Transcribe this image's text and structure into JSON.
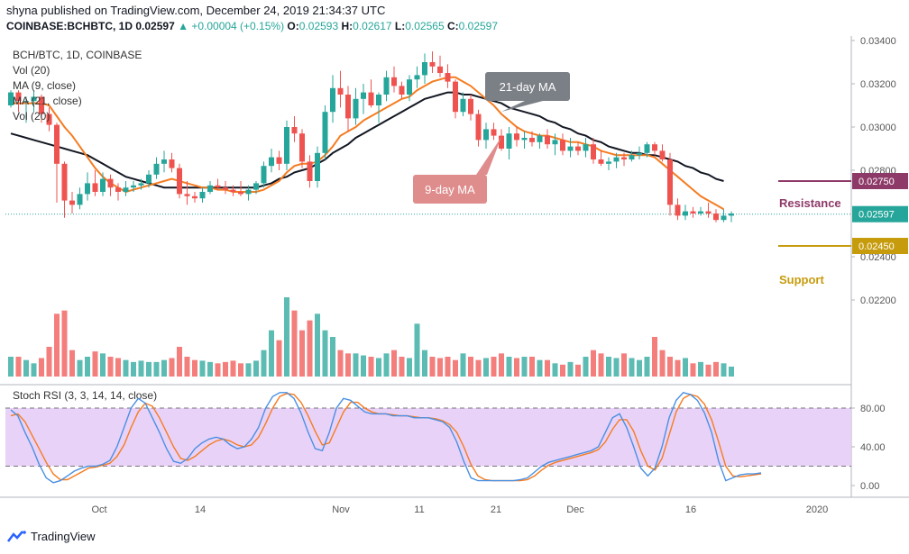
{
  "header": {
    "published": "shyna published on TradingView.com, December 24, 2019 21:34:37 UTC",
    "symbol": "COINBASE:BCHBTC, 1D",
    "last": "0.02597",
    "change": "+0.00004 (+0.15%)",
    "ohlc": {
      "o_label": "O:",
      "o": "0.02593",
      "h_label": "H:",
      "h": "0.02617",
      "l_label": "L:",
      "l": "0.02565",
      "c_label": "C:",
      "c": "0.02597"
    }
  },
  "legend": {
    "title": "BCH/BTC, 1D, COINBASE",
    "lines": [
      "Vol (20)",
      "MA (9, close)",
      "MA (21, close)",
      "Vol (20)"
    ]
  },
  "annotations": {
    "ma21": "21-day MA",
    "ma9": "9-day MA",
    "resistance": "Resistance",
    "support": "Support"
  },
  "footer": {
    "brand": "TradingView"
  },
  "colors": {
    "up": "#26a69a",
    "down": "#ef5350",
    "ma21": "#131722",
    "ma9": "#f57c21",
    "resistance": "#8e3a69",
    "support": "#c69b0c",
    "rsi_k": "#4a90e2",
    "rsi_d": "#f57c21",
    "rsi_band": "#e7cdf7"
  },
  "chart_data": [
    {
      "type": "candlestick",
      "title": "BCH/BTC, 1D, COINBASE",
      "x_ticks": [
        "Oct",
        "14",
        "Nov",
        "11",
        "21",
        "Dec",
        "16",
        "2020"
      ],
      "y_ticks": [
        "0.03400",
        "0.03200",
        "0.03000",
        "0.02800",
        "0.02400",
        "0.02200"
      ],
      "ylim": [
        0.0208,
        0.0342
      ],
      "last_price": 0.02597,
      "resistance": 0.0275,
      "support": 0.0245,
      "price_labels": [
        "0.02750",
        "0.02597",
        "0.02450"
      ],
      "candles": [
        [
          0.031,
          0.0317,
          0.0309,
          0.0316
        ],
        [
          0.0316,
          0.0317,
          0.0307,
          0.0312
        ],
        [
          0.0312,
          0.0314,
          0.0302,
          0.0312
        ],
        [
          0.0312,
          0.0317,
          0.0307,
          0.0314
        ],
        [
          0.0314,
          0.0315,
          0.0302,
          0.0306
        ],
        [
          0.0306,
          0.0309,
          0.0298,
          0.0301
        ],
        [
          0.0301,
          0.0302,
          0.0265,
          0.0283
        ],
        [
          0.0283,
          0.0284,
          0.0258,
          0.0266
        ],
        [
          0.0266,
          0.027,
          0.026,
          0.0264
        ],
        [
          0.0264,
          0.0272,
          0.0262,
          0.0269
        ],
        [
          0.0269,
          0.0279,
          0.0266,
          0.0274
        ],
        [
          0.0274,
          0.028,
          0.0268,
          0.027
        ],
        [
          0.027,
          0.0279,
          0.0268,
          0.0276
        ],
        [
          0.0276,
          0.0278,
          0.0268,
          0.0272
        ],
        [
          0.0272,
          0.0274,
          0.0266,
          0.027
        ],
        [
          0.027,
          0.0275,
          0.0268,
          0.0272
        ],
        [
          0.0272,
          0.0275,
          0.027,
          0.0273
        ],
        [
          0.0273,
          0.0276,
          0.0271,
          0.0274
        ],
        [
          0.0274,
          0.028,
          0.0272,
          0.0278
        ],
        [
          0.0278,
          0.0286,
          0.0276,
          0.0283
        ],
        [
          0.0283,
          0.0289,
          0.0279,
          0.0285
        ],
        [
          0.0285,
          0.0288,
          0.0279,
          0.0281
        ],
        [
          0.0281,
          0.0283,
          0.0267,
          0.0269
        ],
        [
          0.0269,
          0.0275,
          0.0264,
          0.0268
        ],
        [
          0.0268,
          0.027,
          0.0265,
          0.0267
        ],
        [
          0.0267,
          0.0272,
          0.0265,
          0.027
        ],
        [
          0.027,
          0.0275,
          0.0269,
          0.0273
        ],
        [
          0.0273,
          0.0276,
          0.0271,
          0.0272
        ],
        [
          0.0272,
          0.0275,
          0.0269,
          0.0271
        ],
        [
          0.0271,
          0.0273,
          0.0268,
          0.027
        ],
        [
          0.027,
          0.0275,
          0.0268,
          0.0269
        ],
        [
          0.0269,
          0.0273,
          0.0266,
          0.0271
        ],
        [
          0.0271,
          0.0275,
          0.0269,
          0.0274
        ],
        [
          0.0274,
          0.0284,
          0.0272,
          0.0282
        ],
        [
          0.0282,
          0.029,
          0.0279,
          0.0286
        ],
        [
          0.0286,
          0.0289,
          0.028,
          0.0283
        ],
        [
          0.0283,
          0.0303,
          0.028,
          0.03
        ],
        [
          0.03,
          0.0305,
          0.0293,
          0.0297
        ],
        [
          0.0297,
          0.0299,
          0.0281,
          0.0284
        ],
        [
          0.0284,
          0.0287,
          0.0272,
          0.0275
        ],
        [
          0.0275,
          0.0291,
          0.0272,
          0.0288
        ],
        [
          0.0288,
          0.031,
          0.0285,
          0.0307
        ],
        [
          0.0307,
          0.0324,
          0.0302,
          0.0318
        ],
        [
          0.0318,
          0.0326,
          0.0309,
          0.0315
        ],
        [
          0.0315,
          0.0319,
          0.0298,
          0.0304
        ],
        [
          0.0304,
          0.0318,
          0.0301,
          0.0313
        ],
        [
          0.0313,
          0.032,
          0.0306,
          0.0316
        ],
        [
          0.0316,
          0.0322,
          0.0309,
          0.031
        ],
        [
          0.031,
          0.0316,
          0.0302,
          0.0315
        ],
        [
          0.0315,
          0.0326,
          0.0312,
          0.0323
        ],
        [
          0.0323,
          0.0328,
          0.0316,
          0.0319
        ],
        [
          0.0319,
          0.0321,
          0.0313,
          0.0315
        ],
        [
          0.0315,
          0.0324,
          0.0312,
          0.0322
        ],
        [
          0.0322,
          0.0328,
          0.0318,
          0.0324
        ],
        [
          0.0324,
          0.0334,
          0.032,
          0.033
        ],
        [
          0.033,
          0.0335,
          0.0325,
          0.0328
        ],
        [
          0.0328,
          0.0333,
          0.0323,
          0.0325
        ],
        [
          0.0325,
          0.0329,
          0.0318,
          0.0321
        ],
        [
          0.0321,
          0.0322,
          0.0304,
          0.0307
        ],
        [
          0.0307,
          0.0316,
          0.0305,
          0.0313
        ],
        [
          0.0313,
          0.0315,
          0.0303,
          0.0306
        ],
        [
          0.0306,
          0.0308,
          0.0291,
          0.0294
        ],
        [
          0.0294,
          0.0302,
          0.029,
          0.0299
        ],
        [
          0.0299,
          0.0302,
          0.0294,
          0.0296
        ],
        [
          0.0296,
          0.0299,
          0.0289,
          0.029
        ],
        [
          0.029,
          0.03,
          0.0285,
          0.0297
        ],
        [
          0.0297,
          0.03,
          0.0291,
          0.0294
        ],
        [
          0.0294,
          0.0298,
          0.029,
          0.0295
        ],
        [
          0.0295,
          0.0298,
          0.0291,
          0.0293
        ],
        [
          0.0293,
          0.0297,
          0.029,
          0.0296
        ],
        [
          0.0296,
          0.0299,
          0.029,
          0.0292
        ],
        [
          0.0292,
          0.0297,
          0.0287,
          0.0294
        ],
        [
          0.0294,
          0.0297,
          0.0287,
          0.0289
        ],
        [
          0.0289,
          0.0295,
          0.0286,
          0.0291
        ],
        [
          0.0291,
          0.0293,
          0.0287,
          0.0289
        ],
        [
          0.0289,
          0.0295,
          0.0286,
          0.0292
        ],
        [
          0.0292,
          0.0295,
          0.0283,
          0.0285
        ],
        [
          0.0285,
          0.0289,
          0.0282,
          0.0283
        ],
        [
          0.0283,
          0.0286,
          0.028,
          0.0284
        ],
        [
          0.0284,
          0.0288,
          0.0281,
          0.0286
        ],
        [
          0.0286,
          0.0288,
          0.0282,
          0.0285
        ],
        [
          0.0285,
          0.0289,
          0.0284,
          0.0287
        ],
        [
          0.0287,
          0.0291,
          0.0285,
          0.0288
        ],
        [
          0.0288,
          0.0293,
          0.0286,
          0.0292
        ],
        [
          0.0292,
          0.0293,
          0.0287,
          0.0289
        ],
        [
          0.0289,
          0.0292,
          0.0284,
          0.0285
        ],
        [
          0.0285,
          0.0288,
          0.0259,
          0.0264
        ],
        [
          0.0264,
          0.0267,
          0.0257,
          0.0259
        ],
        [
          0.0259,
          0.0264,
          0.0257,
          0.0261
        ],
        [
          0.0261,
          0.0263,
          0.0258,
          0.026
        ],
        [
          0.026,
          0.0263,
          0.0259,
          0.0261
        ],
        [
          0.0261,
          0.0265,
          0.0258,
          0.026
        ],
        [
          0.026,
          0.0262,
          0.0256,
          0.0257
        ],
        [
          0.0257,
          0.0262,
          0.0256,
          0.0259
        ],
        [
          0.0259,
          0.0261,
          0.0256,
          0.026
        ]
      ],
      "ma9": [
        0.0311,
        0.0311,
        0.0311,
        0.0311,
        0.0311,
        0.031,
        0.0305,
        0.03,
        0.0296,
        0.0291,
        0.0286,
        0.0281,
        0.0277,
        0.0274,
        0.0272,
        0.027,
        0.0271,
        0.0272,
        0.0273,
        0.0274,
        0.0275,
        0.0276,
        0.0275,
        0.0274,
        0.0273,
        0.0272,
        0.0272,
        0.0271,
        0.0271,
        0.027,
        0.027,
        0.027,
        0.027,
        0.0271,
        0.0273,
        0.0275,
        0.0279,
        0.0282,
        0.0283,
        0.0283,
        0.0284,
        0.0287,
        0.0291,
        0.0296,
        0.0298,
        0.03,
        0.0303,
        0.0305,
        0.0307,
        0.0309,
        0.0311,
        0.0313,
        0.0314,
        0.0317,
        0.0319,
        0.0321,
        0.0322,
        0.0323,
        0.0323,
        0.0321,
        0.0319,
        0.0316,
        0.0313,
        0.031,
        0.0306,
        0.0303,
        0.03,
        0.0298,
        0.0297,
        0.0296,
        0.0296,
        0.0295,
        0.0294,
        0.0293,
        0.0293,
        0.0292,
        0.0291,
        0.0289,
        0.0288,
        0.0287,
        0.0287,
        0.0287,
        0.0287,
        0.0287,
        0.0286,
        0.0283,
        0.028,
        0.0277,
        0.0274,
        0.0271,
        0.0268,
        0.0266,
        0.0264,
        0.0262
      ],
      "ma21": [
        0.0297,
        0.0296,
        0.0295,
        0.0294,
        0.0293,
        0.0292,
        0.0291,
        0.029,
        0.0289,
        0.0288,
        0.0287,
        0.0285,
        0.0283,
        0.0281,
        0.0279,
        0.0277,
        0.0276,
        0.0275,
        0.0274,
        0.0273,
        0.0272,
        0.0272,
        0.0272,
        0.0272,
        0.0272,
        0.0272,
        0.0272,
        0.0272,
        0.0272,
        0.0272,
        0.0272,
        0.0272,
        0.0272,
        0.0273,
        0.0274,
        0.0276,
        0.0277,
        0.0279,
        0.028,
        0.0281,
        0.0283,
        0.0285,
        0.0288,
        0.029,
        0.0292,
        0.0295,
        0.0297,
        0.0299,
        0.0301,
        0.0303,
        0.0305,
        0.0307,
        0.0309,
        0.0311,
        0.0313,
        0.0314,
        0.0315,
        0.0316,
        0.0316,
        0.0315,
        0.0315,
        0.0314,
        0.0313,
        0.0312,
        0.0311,
        0.0309,
        0.0308,
        0.0307,
        0.0306,
        0.0305,
        0.0303,
        0.0302,
        0.03,
        0.0299,
        0.0297,
        0.0296,
        0.0294,
        0.0293,
        0.0291,
        0.029,
        0.0289,
        0.0288,
        0.0288,
        0.0287,
        0.0287,
        0.0286,
        0.0285,
        0.0284,
        0.0282,
        0.0281,
        0.0279,
        0.0278,
        0.0276,
        0.0275
      ],
      "volume": [
        30,
        30,
        25,
        20,
        28,
        45,
        95,
        100,
        40,
        25,
        30,
        38,
        35,
        30,
        28,
        25,
        22,
        24,
        22,
        22,
        25,
        28,
        45,
        30,
        25,
        24,
        22,
        20,
        22,
        24,
        20,
        20,
        24,
        40,
        70,
        55,
        120,
        100,
        70,
        85,
        95,
        70,
        60,
        40,
        35,
        35,
        32,
        30,
        28,
        35,
        40,
        30,
        28,
        80,
        40,
        30,
        28,
        30,
        25,
        35,
        30,
        25,
        28,
        30,
        35,
        30,
        28,
        30,
        30,
        25,
        25,
        20,
        18,
        22,
        18,
        30,
        40,
        35,
        30,
        28,
        35,
        28,
        25,
        30,
        60,
        40,
        30,
        25,
        28,
        20,
        22,
        18,
        22,
        20,
        15
      ]
    },
    {
      "type": "line",
      "title": "Stoch RSI (3, 3, 14, 14, close)",
      "y_ticks": [
        "80.00",
        "40.00",
        "0.00"
      ],
      "ylim": [
        -10,
        100
      ],
      "bands": [
        20,
        80
      ],
      "series": [
        {
          "name": "K",
          "values": [
            78,
            72,
            55,
            40,
            22,
            8,
            3,
            5,
            10,
            15,
            18,
            20,
            20,
            22,
            26,
            40,
            60,
            80,
            90,
            85,
            70,
            55,
            38,
            25,
            23,
            28,
            38,
            44,
            48,
            50,
            48,
            42,
            38,
            40,
            48,
            60,
            80,
            92,
            96,
            96,
            90,
            75,
            55,
            38,
            36,
            55,
            80,
            90,
            88,
            82,
            76,
            74,
            74,
            74,
            72,
            72,
            72,
            70,
            70,
            70,
            68,
            66,
            60,
            45,
            25,
            8,
            5,
            5,
            5,
            5,
            5,
            5,
            6,
            8,
            14,
            20,
            24,
            26,
            28,
            30,
            32,
            34,
            36,
            40,
            55,
            70,
            74,
            60,
            40,
            18,
            10,
            18,
            40,
            70,
            88,
            96,
            94,
            88,
            75,
            55,
            25,
            5,
            8,
            11,
            12,
            12,
            13
          ]
        },
        {
          "name": "D",
          "values": [
            72,
            74,
            66,
            52,
            38,
            24,
            12,
            6,
            6,
            10,
            14,
            18,
            19,
            21,
            23,
            30,
            42,
            60,
            76,
            85,
            82,
            70,
            55,
            40,
            28,
            26,
            30,
            36,
            42,
            46,
            48,
            46,
            42,
            40,
            42,
            50,
            64,
            80,
            92,
            95,
            94,
            86,
            72,
            56,
            42,
            44,
            60,
            76,
            86,
            86,
            80,
            76,
            74,
            74,
            73,
            72,
            72,
            71,
            70,
            70,
            69,
            67,
            63,
            55,
            40,
            22,
            10,
            6,
            5,
            5,
            5,
            5,
            5,
            6,
            10,
            16,
            21,
            24,
            26,
            28,
            30,
            32,
            34,
            37,
            45,
            58,
            68,
            68,
            56,
            36,
            20,
            16,
            28,
            52,
            76,
            90,
            94,
            92,
            84,
            68,
            45,
            20,
            10,
            9,
            10,
            11,
            12
          ]
        }
      ]
    }
  ]
}
